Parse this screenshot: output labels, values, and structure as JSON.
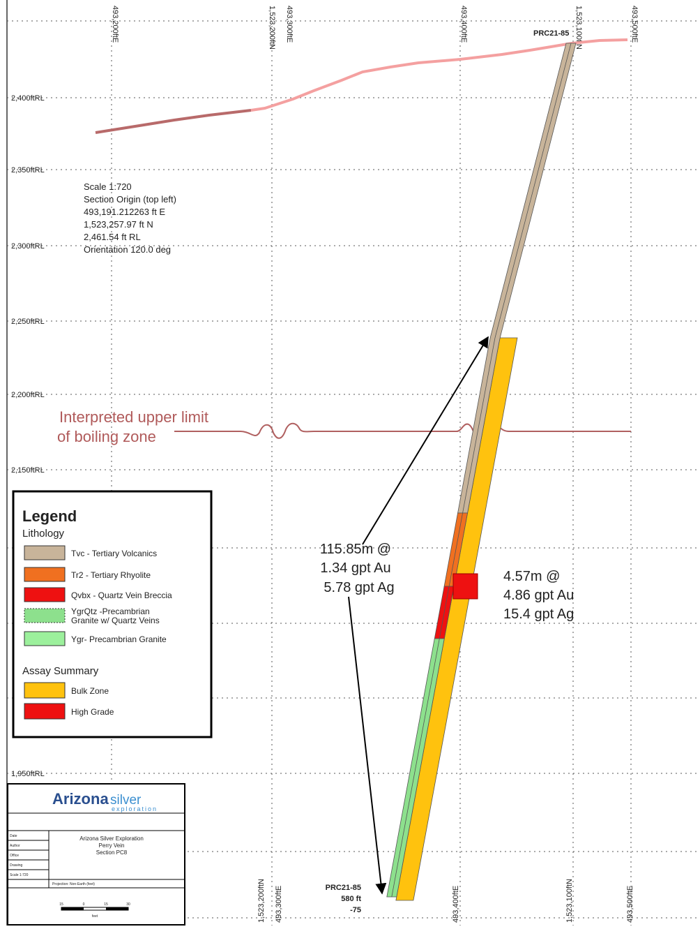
{
  "grid_labels": {
    "top": [
      "493,200ftE",
      "1,523,200ftN",
      "493,300ftE",
      "493,400ftE",
      "1,523,100ftN",
      "493,500ftE"
    ],
    "bottom": [
      "1,523,200ftN",
      "493,300ftE",
      "493,400ftE",
      "1,523,100ftN",
      "493,500ftE"
    ],
    "rl": [
      "2,400ftRL",
      "2,350ftRL",
      "2,300ftRL",
      "2,250ftRL",
      "2,200ftRL",
      "2,150ftRL",
      "1,950ftRL"
    ]
  },
  "hole": {
    "top_label": "PRC21-85",
    "bottom_label": [
      "PRC21-85",
      "580 ft",
      "-75"
    ]
  },
  "section_info": [
    "Scale 1:720",
    "Section Origin (top left)",
    "493,191.212263 ft E",
    "1,523,257.97 ft N",
    "2,461.54 ft RL",
    "Orientation 120.0 deg"
  ],
  "annotations": {
    "boiling_zone": [
      "Interpreted upper limit",
      "of boiling zone"
    ],
    "bulk_intercept": [
      "115.85m @",
      "1.34 gpt Au",
      "5.78 gpt Ag"
    ],
    "high_grade_intercept": [
      "4.57m @",
      "4.86 gpt Au",
      "15.4 gpt Ag"
    ]
  },
  "legend": {
    "title": "Legend",
    "lithology_heading": "Lithology",
    "lithology": [
      {
        "label": [
          "Tvc - Tertiary Volcanics"
        ],
        "color": "#c8b49a"
      },
      {
        "label": [
          "Tr2 - Tertiary Rhyolite"
        ],
        "color": "#f07020"
      },
      {
        "label": [
          "Qvbx - Quartz Vein Breccia"
        ],
        "color": "#ee1111"
      },
      {
        "label": [
          "YgrQtz -Precambrian",
          "Granite w/ Quartz Veins"
        ],
        "color": "#8de08d"
      },
      {
        "label": [
          "Ygr- Precambrian Granite"
        ],
        "color": "#9cf09c"
      }
    ],
    "assay_heading": "Assay Summary",
    "assay": [
      {
        "label": [
          "Bulk Zone"
        ],
        "color": "#ffc20e"
      },
      {
        "label": [
          "High Grade"
        ],
        "color": "#ee1111"
      }
    ]
  },
  "title_block": {
    "logo": [
      "Arizona",
      "silver",
      "exploration"
    ],
    "project": [
      "Arizona Silver Exploration",
      "Perry Vein",
      "Section PC8"
    ],
    "fields": [
      "Date",
      "Author",
      "Office",
      "Drawing",
      "Scale 1:720"
    ],
    "projection": "Projection: Non-Earth (feet)",
    "scale_bar": [
      "15",
      "0",
      "15",
      "30",
      "feet"
    ]
  }
}
